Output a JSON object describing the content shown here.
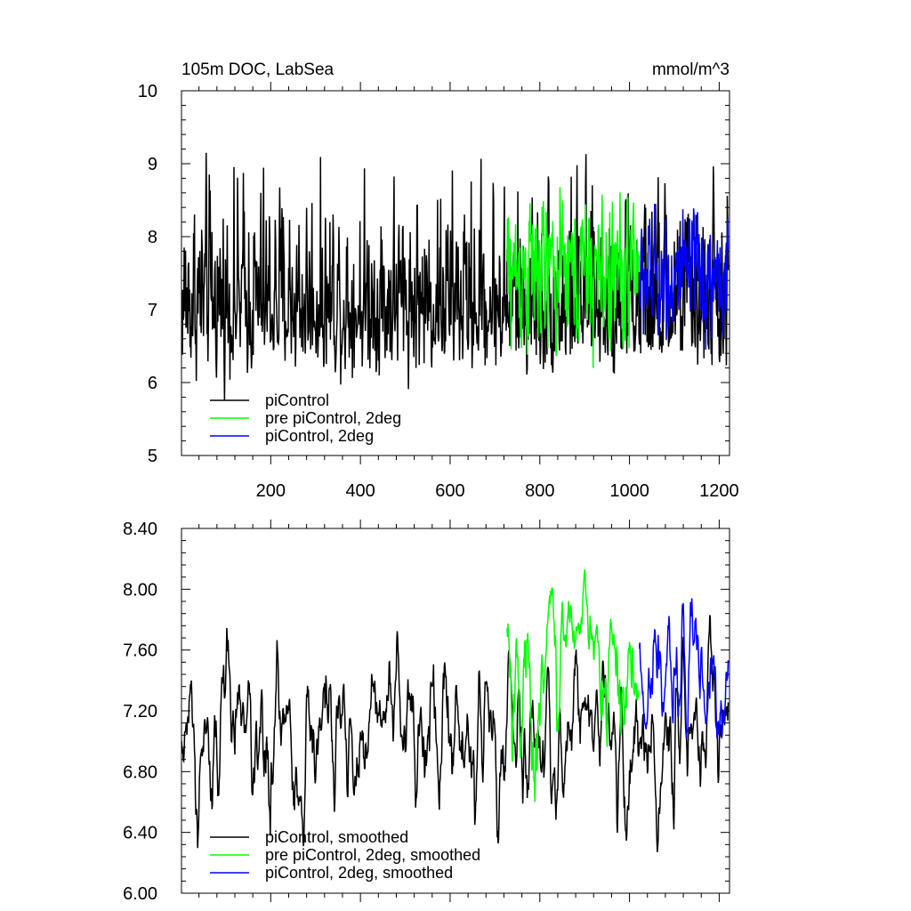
{
  "chart_data": [
    {
      "type": "line",
      "title": "105m DOC, LabSea",
      "units": "mmol/m^3",
      "xlim": [
        1,
        1223
      ],
      "ylim": [
        5,
        10
      ],
      "x_ticks": [
        200,
        400,
        600,
        800,
        1000,
        1200
      ],
      "y_ticks": [
        5,
        6,
        7,
        8,
        9,
        10
      ],
      "y_tick_labels": [
        "5",
        "6",
        "7",
        "8",
        "9",
        "10"
      ],
      "legend": {
        "placement": "bottom-left",
        "entries": [
          "piControl",
          "pre piControl, 2deg",
          "piControl, 2deg"
        ]
      },
      "series": [
        {
          "name": "piControl",
          "color": "#000000",
          "x_start": 1,
          "x_end": 1220,
          "mean": 7.0,
          "spread": 0.55,
          "peak_max": 9.15,
          "peak_min": 5.75
        },
        {
          "name": "pre piControl, 2deg",
          "color": "#00ff00",
          "x_start": 727,
          "x_end": 1020,
          "mean": 7.55,
          "spread": 0.45,
          "peak_max": 8.68,
          "peak_min": 6.2
        },
        {
          "name": "piControl, 2deg",
          "color": "#0000ff",
          "x_start": 1022,
          "x_end": 1220,
          "mean": 7.45,
          "spread": 0.4,
          "peak_max": 8.45,
          "peak_min": 6.45
        }
      ]
    },
    {
      "type": "line",
      "title": "",
      "xlim": [
        1,
        1223
      ],
      "ylim": [
        6.0,
        8.4
      ],
      "x_ticks": [
        200,
        400,
        600,
        800,
        1000,
        1200
      ],
      "y_ticks": [
        6.0,
        6.4,
        6.8,
        7.2,
        7.6,
        8.0,
        8.4
      ],
      "y_tick_labels": [
        "6.00",
        "6.40",
        "6.80",
        "7.20",
        "7.60",
        "8.00",
        "8.40"
      ],
      "legend": {
        "placement": "bottom-left",
        "entries": [
          "piControl, smoothed",
          "pre piControl, 2deg, smoothed",
          "piControl, 2deg, smoothed"
        ]
      },
      "series": [
        {
          "name": "piControl, smoothed",
          "color": "#000000",
          "x_start": 1,
          "x_end": 1220,
          "mean": 7.05,
          "spread": 0.22,
          "peak_max": 7.83,
          "peak_min": 6.27
        },
        {
          "name": "pre piControl, 2deg, smoothed",
          "color": "#00ff00",
          "x_start": 727,
          "x_end": 1020,
          "mean": 7.6,
          "spread": 0.15,
          "peak_max": 8.13,
          "peak_min": 6.6
        },
        {
          "name": "piControl, 2deg, smoothed",
          "color": "#0000ff",
          "x_start": 1022,
          "x_end": 1220,
          "mean": 7.4,
          "spread": 0.18,
          "peak_max": 7.94,
          "peak_min": 7.02
        }
      ]
    }
  ]
}
